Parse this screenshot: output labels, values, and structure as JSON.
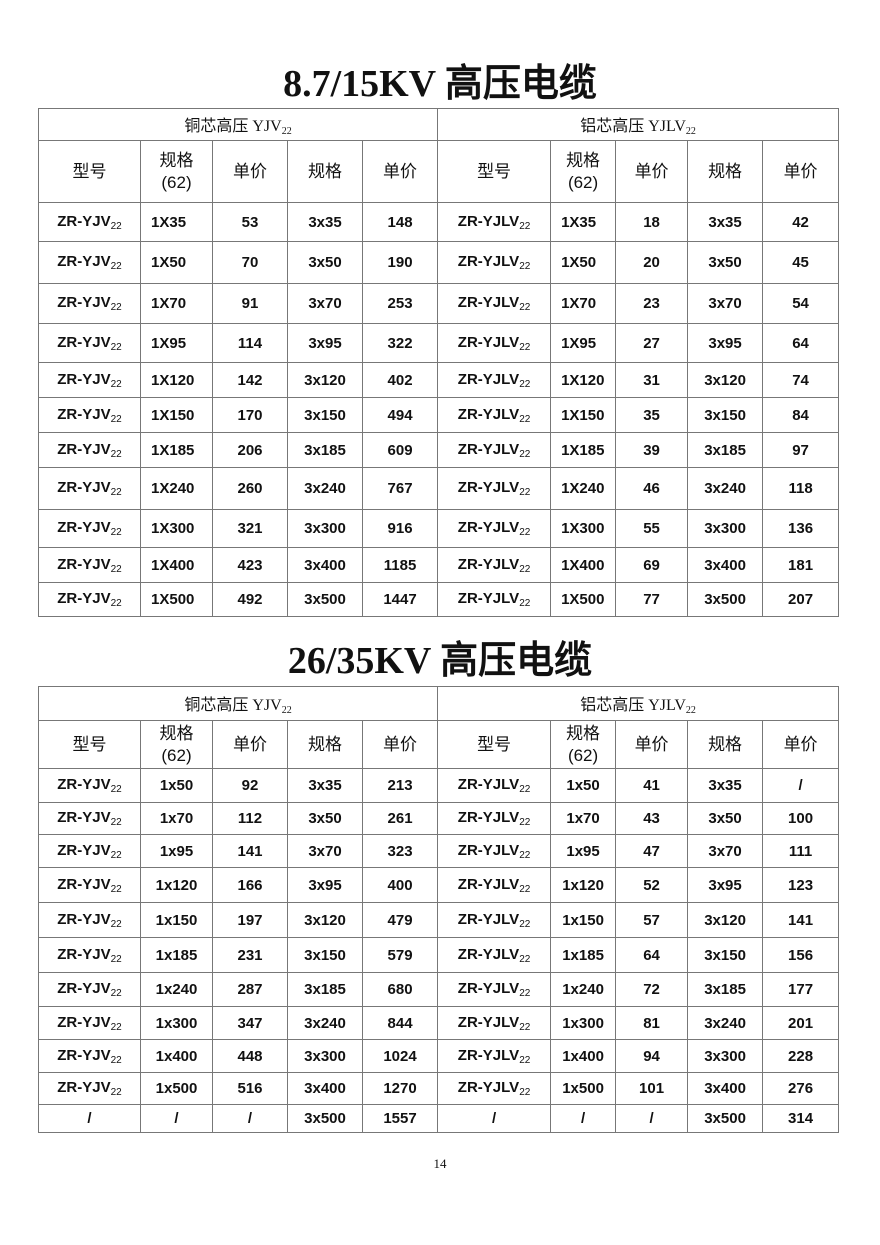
{
  "sections": [
    {
      "title": "8.7/15KV 高压电缆",
      "groups": [
        {
          "label": "铜芯高压 YJV",
          "sub": "22"
        },
        {
          "label": "铝芯高压 YJLV",
          "sub": "22"
        }
      ],
      "headers": [
        "型号",
        "规格\n(62)",
        "单价",
        "规格",
        "单价",
        "型号",
        "规格\n(62)",
        "单价",
        "规格",
        "单价"
      ],
      "rows": [
        [
          "ZR-YJV",
          "1X35",
          "53",
          "3x35",
          "148",
          "ZR-YJLV",
          "1X35",
          "18",
          "3x35",
          "42"
        ],
        [
          "ZR-YJV",
          "1X50",
          "70",
          "3x50",
          "190",
          "ZR-YJLV",
          "1X50",
          "20",
          "3x50",
          "45"
        ],
        [
          "ZR-YJV",
          "1X70",
          "91",
          "3x70",
          "253",
          "ZR-YJLV",
          "1X70",
          "23",
          "3x70",
          "54"
        ],
        [
          "ZR-YJV",
          "1X95",
          "114",
          "3x95",
          "322",
          "ZR-YJLV",
          "1X95",
          "27",
          "3x95",
          "64"
        ],
        [
          "ZR-YJV",
          "1X120",
          "142",
          "3x120",
          "402",
          "ZR-YJLV",
          "1X120",
          "31",
          "3x120",
          "74"
        ],
        [
          "ZR-YJV",
          "1X150",
          "170",
          "3x150",
          "494",
          "ZR-YJLV",
          "1X150",
          "35",
          "3x150",
          "84"
        ],
        [
          "ZR-YJV",
          "1X185",
          "206",
          "3x185",
          "609",
          "ZR-YJLV",
          "1X185",
          "39",
          "3x185",
          "97"
        ],
        [
          "ZR-YJV",
          "1X240",
          "260",
          "3x240",
          "767",
          "ZR-YJLV",
          "1X240",
          "46",
          "3x240",
          "118"
        ],
        [
          "ZR-YJV",
          "1X300",
          "321",
          "3x300",
          "916",
          "ZR-YJLV",
          "1X300",
          "55",
          "3x300",
          "136"
        ],
        [
          "ZR-YJV",
          "1X400",
          "423",
          "3x400",
          "1185",
          "ZR-YJLV",
          "1X400",
          "69",
          "3x400",
          "181"
        ],
        [
          "ZR-YJV",
          "1X500",
          "492",
          "3x500",
          "1447",
          "ZR-YJLV",
          "1X500",
          "77",
          "3x500",
          "207"
        ]
      ]
    },
    {
      "title": "26/35KV 高压电缆",
      "groups": [
        {
          "label": "铜芯高压 YJV",
          "sub": "22"
        },
        {
          "label": "铝芯高压 YJLV",
          "sub": "22"
        }
      ],
      "headers": [
        "型号",
        "规格\n(62)",
        "单价",
        "规格",
        "单价",
        "型号",
        "规格\n(62)",
        "单价",
        "规格",
        "单价"
      ],
      "rows": [
        [
          "ZR-YJV",
          "1x50",
          "92",
          "3x35",
          "213",
          "ZR-YJLV",
          "1x50",
          "41",
          "3x35",
          "/"
        ],
        [
          "ZR-YJV",
          "1x70",
          "112",
          "3x50",
          "261",
          "ZR-YJLV",
          "1x70",
          "43",
          "3x50",
          "100"
        ],
        [
          "ZR-YJV",
          "1x95",
          "141",
          "3x70",
          "323",
          "ZR-YJLV",
          "1x95",
          "47",
          "3x70",
          "111"
        ],
        [
          "ZR-YJV",
          "1x120",
          "166",
          "3x95",
          "400",
          "ZR-YJLV",
          "1x120",
          "52",
          "3x95",
          "123"
        ],
        [
          "ZR-YJV",
          "1x150",
          "197",
          "3x120",
          "479",
          "ZR-YJLV",
          "1x150",
          "57",
          "3x120",
          "141"
        ],
        [
          "ZR-YJV",
          "1x185",
          "231",
          "3x150",
          "579",
          "ZR-YJLV",
          "1x185",
          "64",
          "3x150",
          "156"
        ],
        [
          "ZR-YJV",
          "1x240",
          "287",
          "3x185",
          "680",
          "ZR-YJLV",
          "1x240",
          "72",
          "3x185",
          "177"
        ],
        [
          "ZR-YJV",
          "1x300",
          "347",
          "3x240",
          "844",
          "ZR-YJLV",
          "1x300",
          "81",
          "3x240",
          "201"
        ],
        [
          "ZR-YJV",
          "1x400",
          "448",
          "3x300",
          "1024",
          "ZR-YJLV",
          "1x400",
          "94",
          "3x300",
          "228"
        ],
        [
          "ZR-YJV",
          "1x500",
          "516",
          "3x400",
          "1270",
          "ZR-YJLV",
          "1x500",
          "101",
          "3x400",
          "276"
        ],
        [
          "/",
          "/",
          "/",
          "3x500",
          "1557",
          "/",
          "/",
          "/",
          "3x500",
          "314"
        ]
      ]
    }
  ],
  "model_sub": "22",
  "page_number": "14"
}
